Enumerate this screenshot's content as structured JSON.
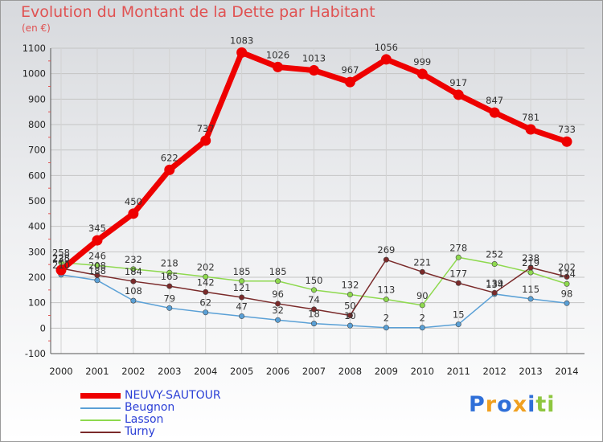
{
  "chart_data": {
    "type": "line",
    "title": "Evolution du Montant de la Dette par Habitant",
    "ylabel": "(en €)",
    "x": [
      "2000",
      "2001",
      "2002",
      "2003",
      "2004",
      "2005",
      "2006",
      "2007",
      "2008",
      "2009",
      "2010",
      "2011",
      "2012",
      "2013",
      "2014"
    ],
    "ylim": [
      -100,
      1100
    ],
    "yticks": [
      "-100",
      "0",
      "100",
      "200",
      "300",
      "400",
      "500",
      "600",
      "700",
      "800",
      "900",
      "1000",
      "1100"
    ],
    "grid": true,
    "legend_position": "bottom-left",
    "series": [
      {
        "name": "NEUVY-SAUTOUR",
        "color": "#ee0000",
        "values": [
          228,
          345,
          450,
          622,
          737,
          1083,
          1026,
          1013,
          967,
          1056,
          999,
          917,
          847,
          781,
          733
        ]
      },
      {
        "name": "Beugnon",
        "color": "#5aa0d6",
        "values": [
          210,
          188,
          108,
          79,
          62,
          47,
          32,
          18,
          10,
          2,
          2,
          15,
          134,
          115,
          98
        ]
      },
      {
        "name": "Lasson",
        "color": "#8ed94e",
        "values": [
          258,
          246,
          232,
          218,
          202,
          185,
          185,
          150,
          132,
          113,
          90,
          278,
          252,
          219,
          174
        ]
      },
      {
        "name": "Turny",
        "color": "#7a2a2a",
        "values": [
          235,
          208,
          184,
          165,
          142,
          121,
          96,
          74,
          50,
          269,
          221,
          177,
          139,
          238,
          202
        ]
      }
    ]
  },
  "brand": {
    "letters": [
      "P",
      "r",
      "o",
      "x",
      "i",
      "t",
      "i"
    ],
    "colors": [
      "#2f6fd8",
      "#f0a020",
      "#2f6fd8",
      "#f0a020",
      "#2f6fd8",
      "#8ec63f",
      "#8ec63f"
    ]
  }
}
